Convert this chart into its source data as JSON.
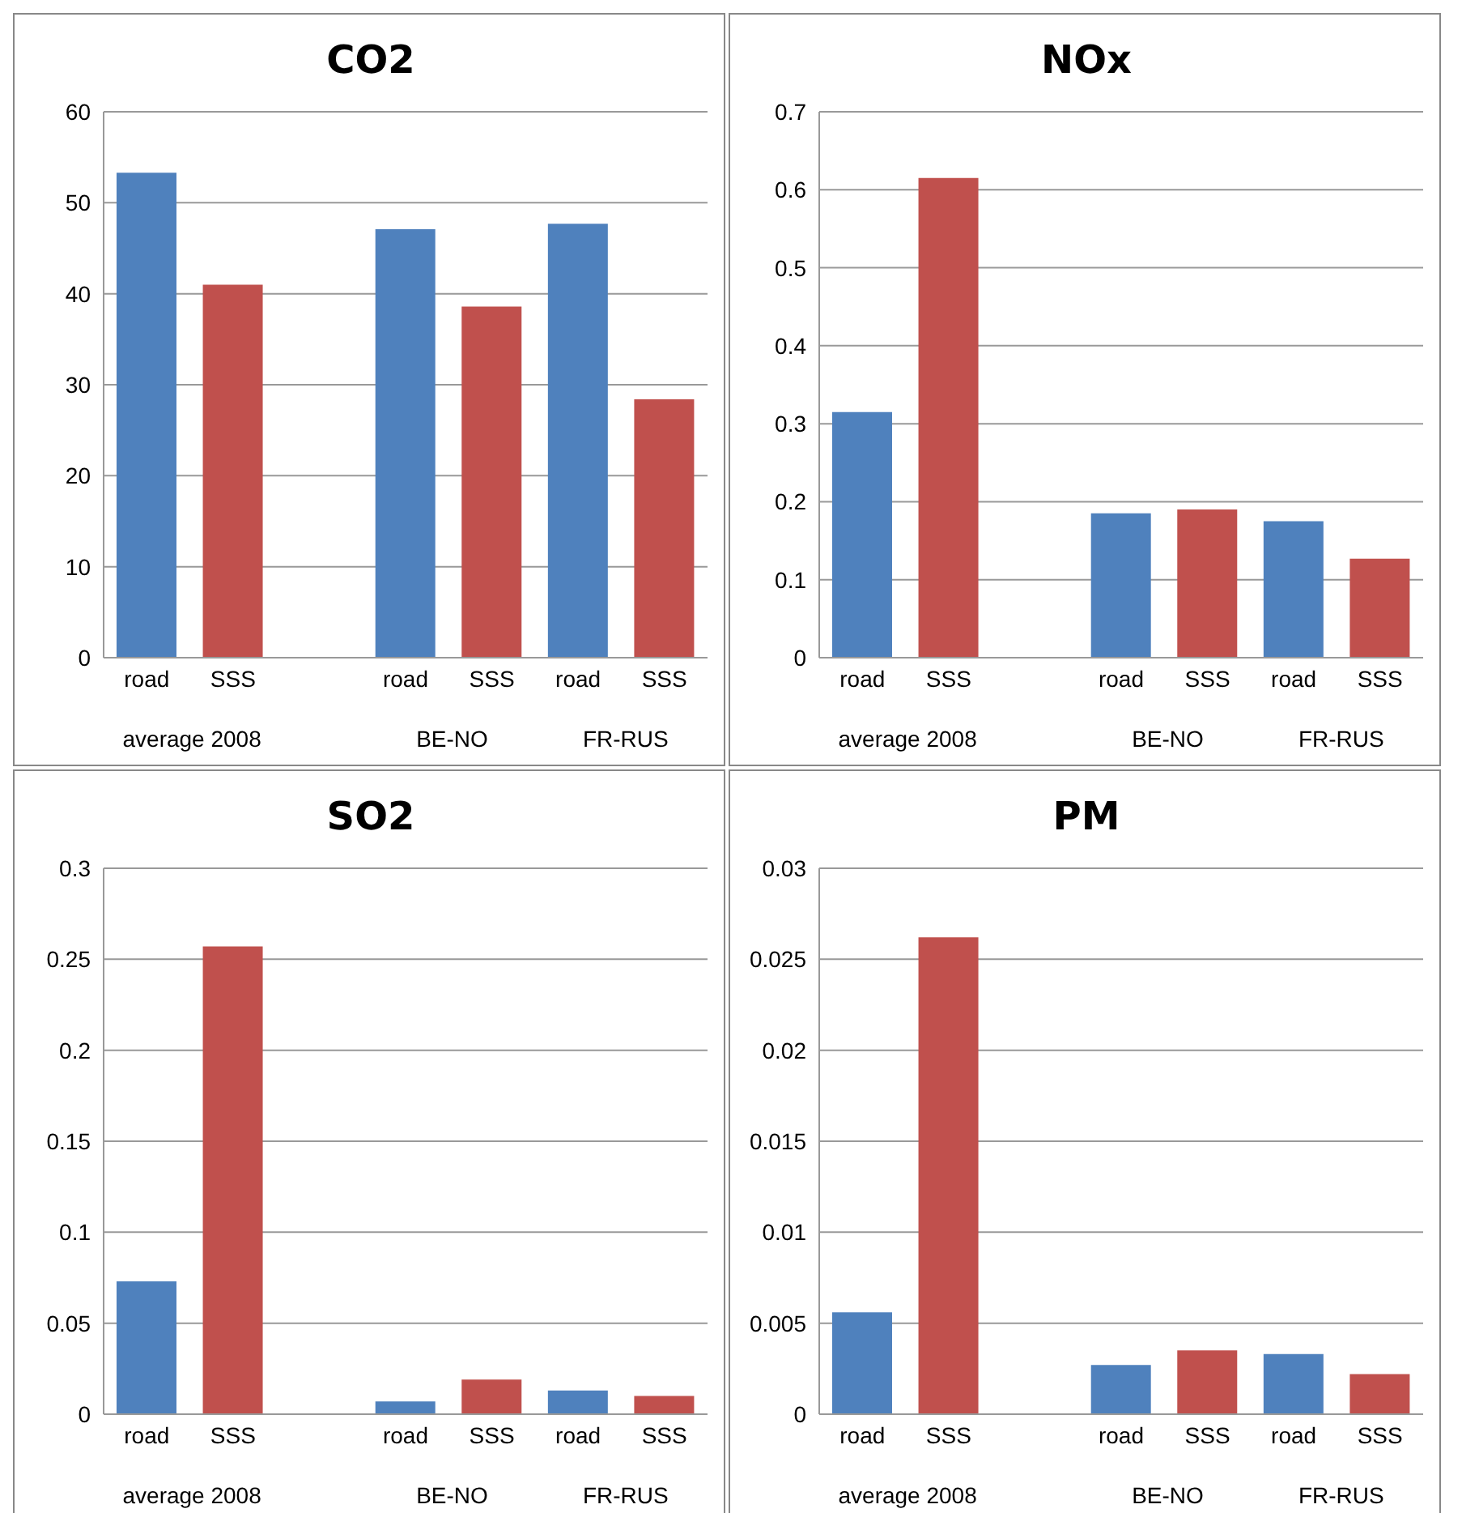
{
  "chart_data": [
    {
      "type": "bar",
      "title": "CO2",
      "categories": [
        "road",
        "SSS",
        null,
        "road",
        "SSS",
        "road",
        "SSS"
      ],
      "values": [
        53.3,
        41,
        null,
        47.1,
        38.6,
        47.7,
        28.4
      ],
      "colors": [
        "#4f81bd",
        "#c0504d",
        "#4f81bd",
        "#4f81bd",
        "#c0504d",
        "#4f81bd",
        "#c0504d"
      ],
      "ylim": [
        0,
        60
      ],
      "yticks": [
        0,
        10,
        20,
        30,
        40,
        50,
        60
      ],
      "grid": "y",
      "legend": false,
      "annotations": [
        "average 2008",
        "BE-NO",
        "FR-RUS"
      ]
    },
    {
      "type": "bar",
      "title": "NOx",
      "categories": [
        "road",
        "SSS",
        null,
        "road",
        "SSS",
        "road",
        "SSS"
      ],
      "values": [
        0.315,
        0.615,
        null,
        0.185,
        0.19,
        0.175,
        0.127
      ],
      "colors": [
        "#4f81bd",
        "#c0504d",
        "#4f81bd",
        "#4f81bd",
        "#c0504d",
        "#4f81bd",
        "#c0504d"
      ],
      "ylim": [
        0,
        0.7
      ],
      "yticks": [
        0,
        0.1,
        0.2,
        0.3,
        0.4,
        0.5,
        0.6,
        0.7
      ],
      "grid": "y",
      "legend": false,
      "annotations": [
        "average 2008",
        "BE-NO",
        "FR-RUS"
      ]
    },
    {
      "type": "bar",
      "title": "SO2",
      "categories": [
        "road",
        "SSS",
        null,
        "road",
        "SSS",
        "road",
        "SSS"
      ],
      "values": [
        0.073,
        0.257,
        null,
        0.007,
        0.019,
        0.013,
        0.01
      ],
      "colors": [
        "#4f81bd",
        "#c0504d",
        "#4f81bd",
        "#4f81bd",
        "#c0504d",
        "#4f81bd",
        "#c0504d"
      ],
      "ylim": [
        0,
        0.3
      ],
      "yticks": [
        0,
        0.05,
        0.1,
        0.15,
        0.2,
        0.25,
        0.3
      ],
      "grid": "y",
      "legend": false,
      "annotations": [
        "average 2008",
        "BE-NO",
        "FR-RUS"
      ]
    },
    {
      "type": "bar",
      "title": "PM",
      "categories": [
        "road",
        "SSS",
        null,
        "road",
        "SSS",
        "road",
        "SSS"
      ],
      "values": [
        0.0056,
        0.0262,
        null,
        0.0027,
        0.0035,
        0.0033,
        0.0022
      ],
      "colors": [
        "#4f81bd",
        "#c0504d",
        "#4f81bd",
        "#4f81bd",
        "#c0504d",
        "#4f81bd",
        "#c0504d"
      ],
      "ylim": [
        0,
        0.03
      ],
      "yticks": [
        0,
        0.005,
        0.01,
        0.015,
        0.02,
        0.025,
        0.03
      ],
      "grid": "y",
      "legend": false,
      "annotations": [
        "average 2008",
        "BE-NO",
        "FR-RUS"
      ]
    }
  ]
}
